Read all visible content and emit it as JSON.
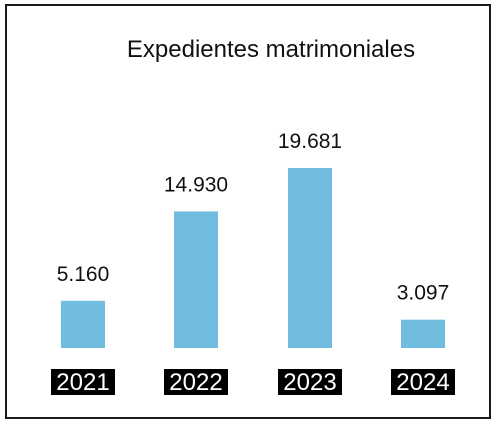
{
  "chart_data": {
    "type": "bar",
    "title": "Expedientes matrimoniales",
    "categories": [
      "2021",
      "2022",
      "2023",
      "2024"
    ],
    "values": [
      5160,
      14930,
      19681,
      3097
    ],
    "value_labels": [
      "5.160",
      "14.930",
      "19.681",
      "3.097"
    ],
    "bar_color": "#70BDE0",
    "category_label_background": "#000000",
    "category_label_color": "#ffffff",
    "ylim": [
      0,
      19681
    ],
    "grid": false,
    "legend": "none"
  }
}
